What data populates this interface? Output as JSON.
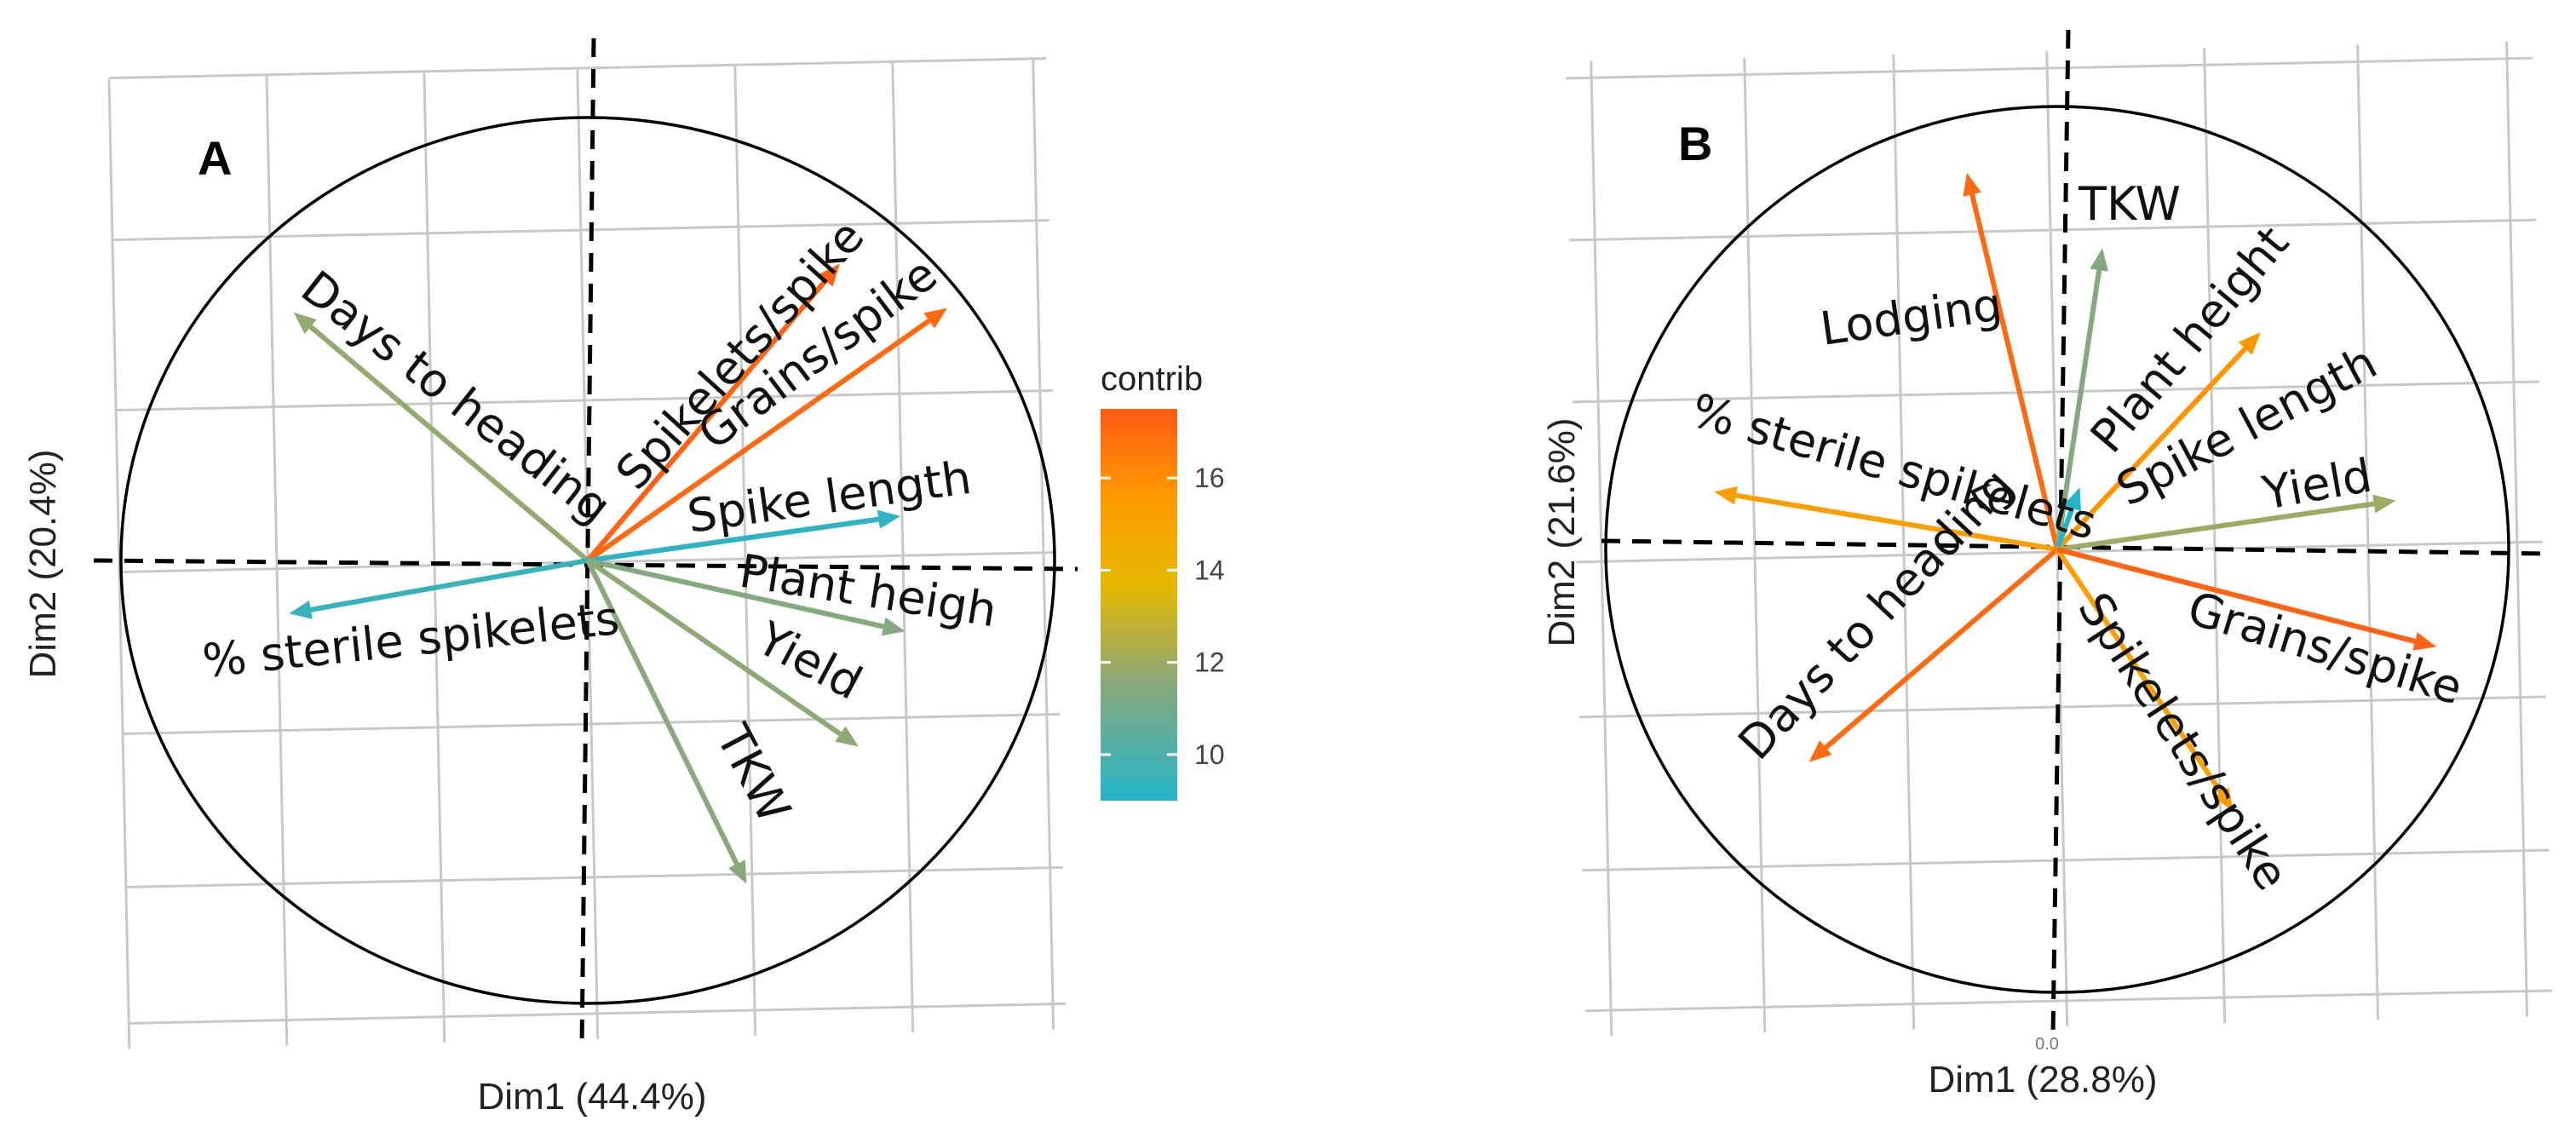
{
  "chart_data": [
    {
      "type": "pca-variable-factor-map",
      "panel_label": "A",
      "xlabel": "Dim1 (44.4%)",
      "ylabel": "Dim2 (20.4%)",
      "xlim": [
        -1,
        1
      ],
      "ylim": [
        -1,
        1
      ],
      "grid": true,
      "variables": [
        {
          "name": "Days to heading",
          "x": -0.63,
          "y": 0.56,
          "contrib": 11.3
        },
        {
          "name": "Spikelets/spike",
          "x": 0.54,
          "y": 0.67,
          "contrib": 17.2
        },
        {
          "name": "Grains/spike",
          "x": 0.77,
          "y": 0.57,
          "contrib": 17.0
        },
        {
          "name": "Spike length",
          "x": 0.67,
          "y": 0.1,
          "contrib": 9.2
        },
        {
          "name": "% sterile spikelets",
          "x": -0.64,
          "y": -0.12,
          "contrib": 9.4
        },
        {
          "name": "Plant heigh",
          "x": 0.68,
          "y": -0.16,
          "contrib": 11.0
        },
        {
          "name": "Yield",
          "x": 0.58,
          "y": -0.42,
          "contrib": 11.2
        },
        {
          "name": "TKW",
          "x": 0.34,
          "y": -0.73,
          "contrib": 11.1
        }
      ]
    },
    {
      "type": "pca-variable-factor-map",
      "panel_label": "B",
      "xlabel": "Dim1 (28.8%)",
      "ylabel": "Dim2 (21.6%)",
      "xlim": [
        -1,
        1
      ],
      "ylim": [
        -1,
        1
      ],
      "grid": true,
      "variables": [
        {
          "name": "Lodging",
          "x": -0.2,
          "y": 0.85,
          "contrib": 17.0
        },
        {
          "name": "TKW",
          "x": 0.1,
          "y": 0.68,
          "contrib": 11.0
        },
        {
          "name": "Plant height",
          "x": 0.45,
          "y": 0.49,
          "contrib": 15.5
        },
        {
          "name": "Spike length",
          "x": 0.05,
          "y": 0.14,
          "contrib": 9.0
        },
        {
          "name": "Yield",
          "x": 0.75,
          "y": 0.11,
          "contrib": 11.5
        },
        {
          "name": "% sterile spikelets",
          "x": -0.76,
          "y": 0.13,
          "contrib": 15.0
        },
        {
          "name": "Days to heading",
          "x": -0.55,
          "y": -0.48,
          "contrib": 17.0
        },
        {
          "name": "Spikelets/spike",
          "x": 0.39,
          "y": -0.59,
          "contrib": 15.0
        },
        {
          "name": "Grains/spike",
          "x": 0.84,
          "y": -0.22,
          "contrib": 17.2
        }
      ]
    }
  ],
  "legend": {
    "title": "contrib",
    "ticks": [
      "16",
      "14",
      "12",
      "10"
    ],
    "tick_values": [
      16,
      14,
      12,
      10
    ],
    "range": [
      9,
      17.5
    ],
    "colors": [
      "#23b5c9",
      "#8aa87a",
      "#e6b800",
      "#ff9900",
      "#ff5a14"
    ]
  },
  "extra_text": {
    "b_bottom_fragment": "0.0"
  }
}
